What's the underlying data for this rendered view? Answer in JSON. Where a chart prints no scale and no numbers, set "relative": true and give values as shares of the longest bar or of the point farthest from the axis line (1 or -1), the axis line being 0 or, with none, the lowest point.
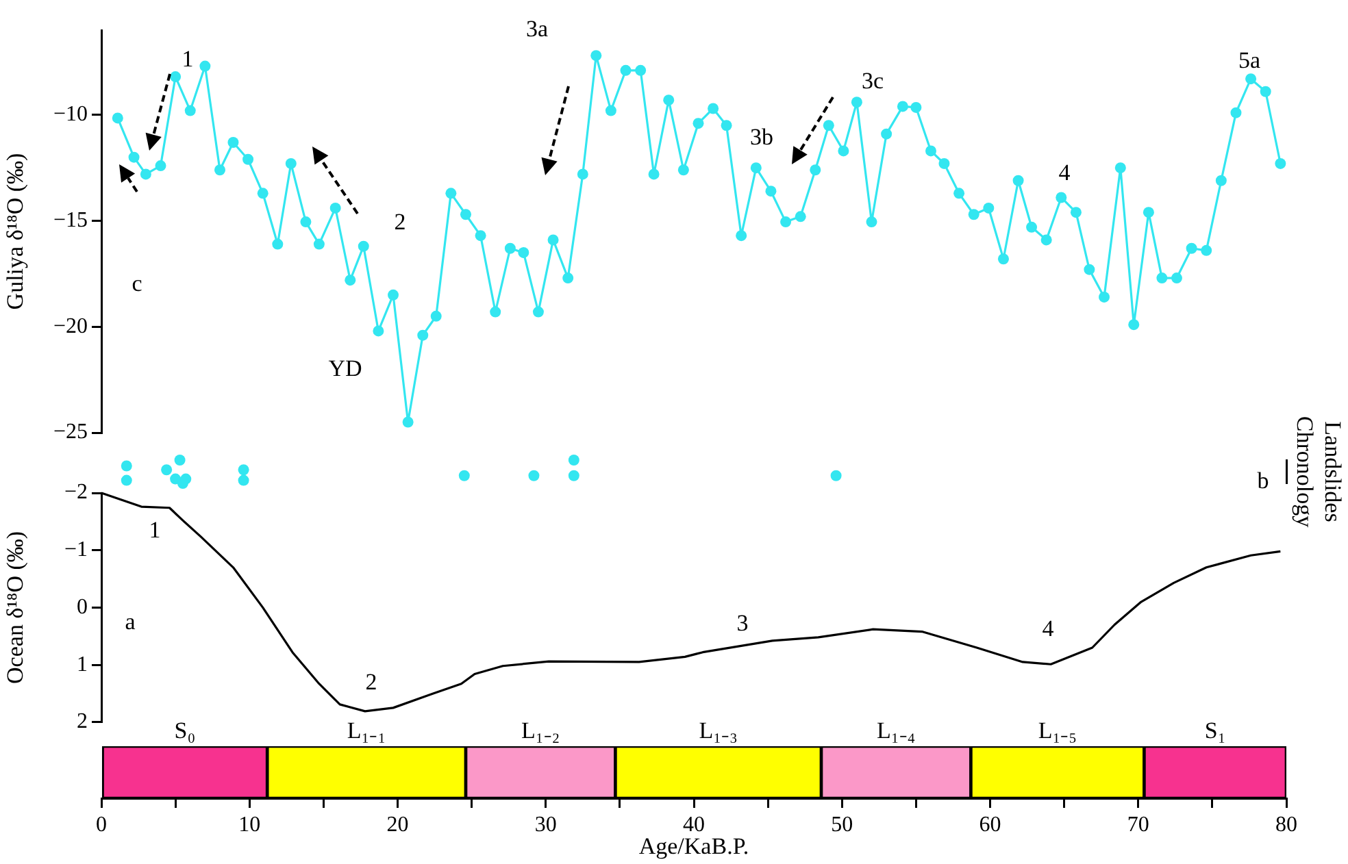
{
  "chart_data": [
    {
      "type": "line",
      "ylabel": "Guliya δ¹⁸O (‰)",
      "xlim": [
        0,
        80
      ],
      "ylim": [
        -25,
        -6
      ],
      "yticks": [
        -10,
        -15,
        -20,
        -25
      ],
      "tick_labels": "y",
      "grid": false,
      "legend": false,
      "marker": "circle",
      "line_style": "solid",
      "x": [
        1.1,
        2.2,
        3.0,
        4.0,
        5.0,
        6.0,
        7.0,
        8.0,
        8.9,
        9.9,
        10.9,
        11.9,
        12.8,
        13.8,
        14.7,
        15.8,
        16.8,
        17.7,
        18.7,
        19.7,
        20.7,
        21.7,
        22.6,
        23.6,
        24.6,
        25.6,
        26.6,
        27.6,
        28.5,
        29.5,
        30.5,
        31.5,
        32.5,
        33.4,
        34.4,
        35.4,
        36.4,
        37.3,
        38.3,
        39.3,
        40.3,
        41.3,
        42.2,
        43.2,
        44.2,
        45.2,
        46.2,
        47.2,
        48.2,
        49.1,
        50.1,
        51.0,
        52.0,
        53.0,
        54.1,
        55.0,
        56.0,
        56.9,
        57.9,
        58.9,
        59.9,
        60.9,
        61.9,
        62.8,
        63.8,
        64.8,
        65.8,
        66.7,
        67.7,
        68.8,
        69.7,
        70.7,
        71.6,
        72.6,
        73.6,
        74.6,
        75.6,
        76.6,
        77.6,
        78.6,
        79.6
      ],
      "series": [
        {
          "color": "#33e6f0",
          "values": [
            -10.15,
            -12.0,
            -12.8,
            -12.4,
            -8.2,
            -9.8,
            -7.7,
            -12.6,
            -11.3,
            -12.1,
            -13.7,
            -16.1,
            -12.3,
            -15.05,
            -16.1,
            -14.4,
            -17.8,
            -16.2,
            -20.2,
            -18.5,
            -24.5,
            -20.4,
            -19.5,
            -13.7,
            -14.7,
            -15.7,
            -19.3,
            -16.3,
            -16.5,
            -19.3,
            -15.9,
            -17.7,
            -12.8,
            -7.2,
            -9.8,
            -7.9,
            -7.9,
            -12.8,
            -9.3,
            -12.6,
            -10.4,
            -9.7,
            -10.5,
            -15.7,
            -12.5,
            -13.6,
            -15.05,
            -14.8,
            -12.6,
            -10.5,
            -11.7,
            -9.4,
            -15.05,
            -10.9,
            -9.6,
            -9.65,
            -11.7,
            -12.3,
            -13.7,
            -14.7,
            -14.4,
            -16.8,
            -13.1,
            -15.3,
            -15.9,
            -13.9,
            -14.6,
            -17.3,
            -18.6,
            -12.5,
            -19.9,
            -14.6,
            -17.7,
            -17.7,
            -16.3,
            -16.4,
            -13.1,
            -9.9,
            -8.3,
            -8.9,
            -12.3
          ]
        }
      ],
      "annotations": [
        "1",
        "2",
        "3a",
        "3b",
        "3c",
        "4",
        "5a",
        "YD",
        "c"
      ]
    },
    {
      "type": "scatter",
      "ylabel": "Landslides Chronology",
      "relative": true,
      "xlim": [
        0,
        80
      ],
      "tick_labels": false,
      "grid": false,
      "legend": false,
      "marker": "circle",
      "x": [
        1.7,
        1.7,
        4.4,
        5.3,
        5.0,
        5.5,
        5.7,
        9.6,
        9.6,
        24.5,
        29.2,
        31.9,
        31.9,
        49.6
      ],
      "series": [
        {
          "color": "#33e6f0",
          "values": [
            0.75,
            0.13,
            0.58,
            1,
            0.19,
            0,
            0.19,
            0.58,
            0.13,
            0.33,
            0.33,
            1,
            0.33,
            0.33
          ]
        }
      ],
      "annotations": [
        "b"
      ]
    },
    {
      "type": "line",
      "ylabel": "Ocean δ¹⁸O (‰)",
      "xlim": [
        0,
        80
      ],
      "ylim": [
        2,
        -2
      ],
      "yticks": [
        -2,
        -1,
        0,
        1,
        2
      ],
      "tick_labels": "y",
      "grid": false,
      "legend": false,
      "marker": "none",
      "line_style": "solid",
      "x": [
        0,
        2.7,
        4.6,
        5.5,
        6.7,
        8.9,
        10.9,
        12.9,
        14.7,
        16.1,
        17.8,
        19.7,
        22.4,
        24.3,
        25.2,
        27.1,
        30.2,
        36.3,
        39.4,
        40.6,
        45.3,
        48.4,
        52.1,
        55.4,
        59.1,
        62.2,
        64.1,
        66.9,
        68.4,
        70.2,
        72.4,
        74.6,
        77.6,
        79.6
      ],
      "series": [
        {
          "color": "#000000",
          "values": [
            -2.0,
            -1.76,
            -1.74,
            -1.52,
            -1.24,
            -0.7,
            0,
            0.78,
            1.33,
            1.69,
            1.81,
            1.75,
            1.5,
            1.33,
            1.16,
            1.02,
            0.94,
            0.95,
            0.86,
            0.78,
            0.58,
            0.52,
            0.38,
            0.42,
            0.7,
            0.95,
            0.99,
            0.7,
            0.3,
            -0.1,
            -0.43,
            -0.7,
            -0.91,
            -0.98
          ]
        }
      ],
      "annotations": [
        "1",
        "2",
        "3",
        "4",
        "a"
      ]
    },
    {
      "type": "bar",
      "orientation": "horizontal",
      "stacked": true,
      "xlabel": "Age/KaB.P.",
      "xlim": [
        0,
        80
      ],
      "xticks": [
        0,
        {
          "value": 5,
          "label": null
        },
        10,
        {
          "value": 15,
          "label": null
        },
        20,
        {
          "value": 25,
          "label": null
        },
        30,
        {
          "value": 35,
          "label": null
        },
        40,
        {
          "value": 45,
          "label": null
        },
        50,
        {
          "value": 55,
          "label": null
        },
        60,
        {
          "value": 65,
          "label": null
        },
        70,
        {
          "value": 75,
          "label": null
        },
        80
      ],
      "tick_labels": "x",
      "grid": false,
      "legend": false,
      "categories": [
        null
      ],
      "series": [
        {
          "name": "S₀",
          "color": "#f7328f",
          "values": [
            11.2
          ]
        },
        {
          "name": "L₁₋₁",
          "color": "#ffff00",
          "values": [
            13.4
          ]
        },
        {
          "name": "L₁₋₂",
          "color": "#fb98c8",
          "values": [
            10.1
          ]
        },
        {
          "name": "L₁₋₃",
          "color": "#ffff00",
          "values": [
            13.9
          ]
        },
        {
          "name": "L₁₋₄",
          "color": "#fb98c8",
          "values": [
            10.1
          ]
        },
        {
          "name": "L₁₋₅",
          "color": "#ffff00",
          "values": [
            11.7
          ]
        },
        {
          "name": "S₁",
          "color": "#f7328f",
          "values": [
            9.6
          ]
        }
      ]
    }
  ]
}
